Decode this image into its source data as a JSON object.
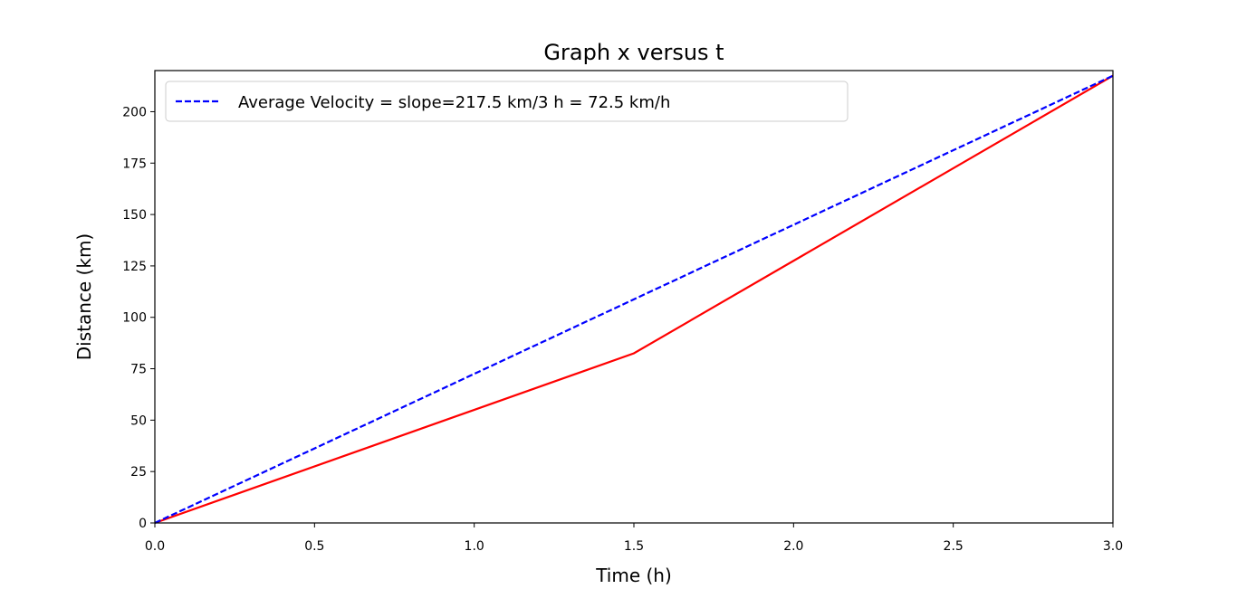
{
  "chart_data": {
    "type": "line",
    "title": "Graph x versus t",
    "xlabel": "Time (h)",
    "ylabel": "Distance (km)",
    "xlim": [
      0.0,
      3.0
    ],
    "ylim": [
      0,
      220
    ],
    "xticks": [
      0.0,
      0.5,
      1.0,
      1.5,
      2.0,
      2.5,
      3.0
    ],
    "xtick_labels": [
      "0.0",
      "0.5",
      "1.0",
      "1.5",
      "2.0",
      "2.5",
      "3.0"
    ],
    "yticks": [
      0,
      25,
      50,
      75,
      100,
      125,
      150,
      175,
      200
    ],
    "ytick_labels": [
      "0",
      "25",
      "50",
      "75",
      "100",
      "125",
      "150",
      "175",
      "200"
    ],
    "grid": false,
    "legend_position": "top-left",
    "series": [
      {
        "color": "#ff0000",
        "style": "solid",
        "x": [
          0.0,
          1.5,
          3.0
        ],
        "y": [
          0,
          82.5,
          217.5
        ]
      },
      {
        "name": "Average Velocity = slope=217.5 km/3 h = 72.5 km/h",
        "color": "#0000ff",
        "style": "dashed",
        "x": [
          0.0,
          3.0
        ],
        "y": [
          0,
          217.5
        ]
      }
    ]
  }
}
